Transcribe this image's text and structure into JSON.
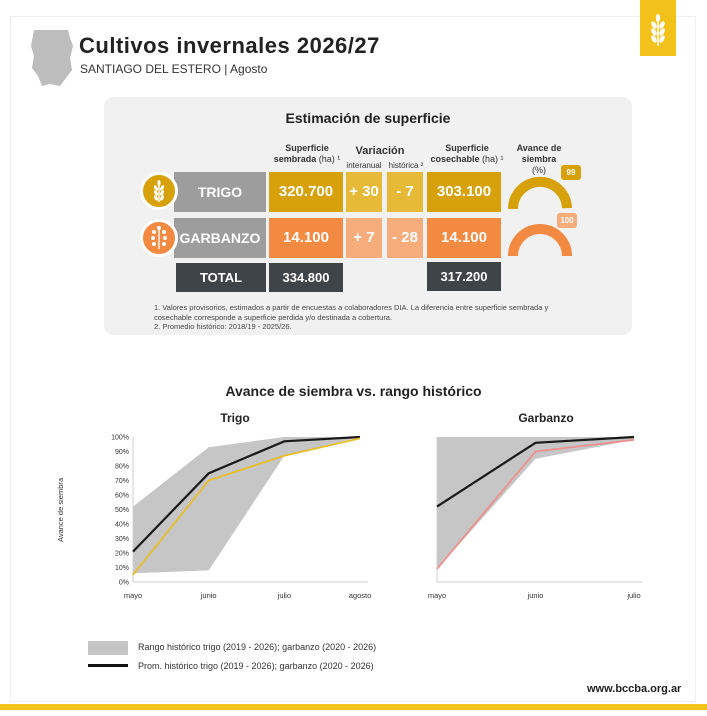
{
  "header": {
    "title": "Cultivos invernales 2026/27",
    "subtitle": "SANTIAGO DEL ESTERO | Agosto"
  },
  "summary": {
    "title": "Estimación de superficie",
    "col_sembrada_line1": "Superficie",
    "col_sembrada_line2": "sembrada",
    "col_sembrada_unit": "(ha) ¹",
    "col_variacion": "Variación",
    "col_interanual": "interanual",
    "col_historica": "histórica ²",
    "col_cosechable_line1": "Superficie",
    "col_cosechable_line2": "cosechable",
    "col_cosechable_unit": "(ha) ¹",
    "col_avance_line1": "Avance de",
    "col_avance_line2": "siembra",
    "col_avance_unit": "(%)",
    "rows": [
      {
        "crop": "TRIGO",
        "sembrada": "320.700",
        "interanual": "+ 30",
        "historica": "- 7",
        "cosechable": "303.100",
        "avance": "99",
        "avance_value": 99,
        "color": "#d6a10b",
        "light_color": "#e6b937"
      },
      {
        "crop": "GARBANZO",
        "sembrada": "14.100",
        "interanual": "+ 7",
        "historica": "- 28",
        "cosechable": "14.100",
        "avance": "100",
        "avance_value": 100,
        "color": "#f28a42",
        "light_color": "#f6ad7b"
      }
    ],
    "total_label": "TOTAL",
    "total_sembrada": "334.800",
    "total_cosechable": "317.200",
    "note1": "1. Valores provisorios, estimados a partir de encuestas a colaboradores DIA. La diferencia entre superficie sembrada y cosechable corresponde a superficie perdida y/o destinada a cobertura.",
    "note2": "2. Promedio histórico: 2018/19 - 2025/26."
  },
  "chart_data": [
    {
      "type": "line",
      "title": "Trigo",
      "suptitle": "Avance de siembra vs. rango histórico",
      "ylabel": "Avance de siembra",
      "xlabel": "",
      "categories": [
        "mayo",
        "junio",
        "julio",
        "agosto"
      ],
      "yticks": [
        "0%",
        "10%",
        "20%",
        "30%",
        "40%",
        "50%",
        "60%",
        "70%",
        "80%",
        "90%",
        "100%"
      ],
      "ylim": [
        0,
        100
      ],
      "range": {
        "min": [
          6,
          8,
          87,
          100
        ],
        "max": [
          52,
          93,
          100,
          100
        ],
        "color": "#c6c6c6"
      },
      "series": [
        {
          "values": [
            21,
            75,
            97,
            100
          ],
          "color": "#1a1a1a"
        },
        {
          "values": [
            5,
            70,
            87,
            99
          ],
          "color": "#e8be2a"
        }
      ],
      "grid": false
    },
    {
      "type": "line",
      "title": "Garbanzo",
      "categories": [
        "mayo",
        "junio",
        "julio"
      ],
      "ylim": [
        0,
        100
      ],
      "range": {
        "min": [
          9,
          85,
          98
        ],
        "max": [
          100,
          100,
          100
        ],
        "color": "#c6c6c6"
      },
      "series": [
        {
          "values": [
            52,
            96,
            100
          ],
          "color": "#1a1a1a"
        },
        {
          "values": [
            9,
            90,
            98
          ],
          "color": "#ee8f8f"
        }
      ],
      "grid": false
    }
  ],
  "legend": {
    "range_label": "Rango histórico trigo (2019 - 2026); garbanzo (2020 - 2026)",
    "avg_label": "Prom. histórico trigo (2019 - 2026); garbanzo (2020 - 2026)"
  },
  "footer": {
    "site": "www.bccba.org.ar"
  }
}
